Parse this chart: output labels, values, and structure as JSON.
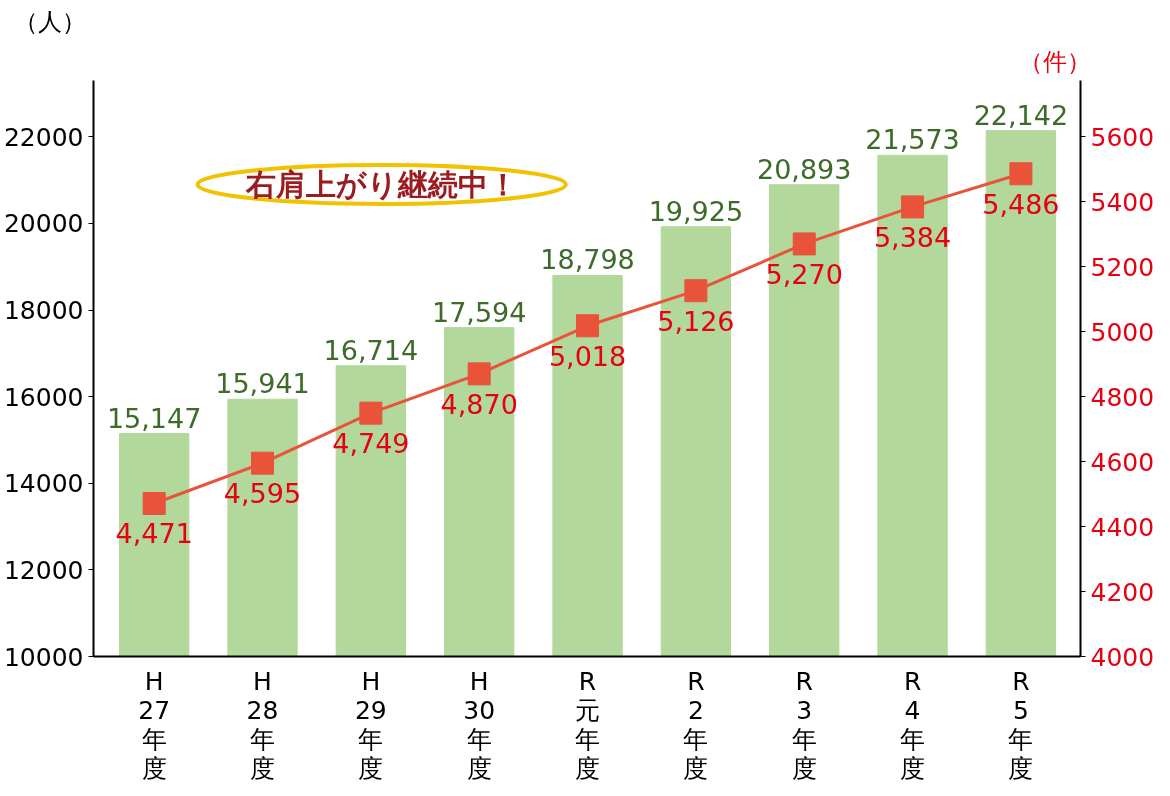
{
  "chart_data": {
    "type": "bar",
    "ylabel": "（人）",
    "y2label": "（件）",
    "categories": [
      "H27年度",
      "H28年度",
      "H29年度",
      "H30年度",
      "R元年度",
      "R2年度",
      "R3年度",
      "R4年度",
      "R5年度"
    ],
    "series": [
      {
        "color": "#b3d89b",
        "values": [
          15147,
          15941,
          16714,
          17594,
          18798,
          19925,
          20893,
          21573,
          22142
        ],
        "value_labels": [
          "15,147",
          "15,941",
          "16,714",
          "17,594",
          "18,798",
          "19,925",
          "20,893",
          "21,573",
          "22,142"
        ]
      },
      {
        "type": "line",
        "axis": "y2",
        "color": "#e8533a",
        "marker": "square",
        "values": [
          4471,
          4595,
          4749,
          4870,
          5018,
          5126,
          5270,
          5384,
          5486
        ],
        "value_labels": [
          "4,471",
          "4,595",
          "4,749",
          "4,870",
          "5,018",
          "5,126",
          "5,270",
          "5,384",
          "5,486"
        ]
      }
    ],
    "ylim": [
      10000,
      23300
    ],
    "yticks": [
      10000,
      12000,
      14000,
      16000,
      18000,
      20000,
      22000
    ],
    "y2lim": [
      4000,
      5773
    ],
    "y2ticks": [
      4000,
      4200,
      4400,
      4600,
      4800,
      5000,
      5200,
      5400,
      5600
    ],
    "grid": false,
    "annotations": [
      "右肩上がり継続中！"
    ]
  }
}
